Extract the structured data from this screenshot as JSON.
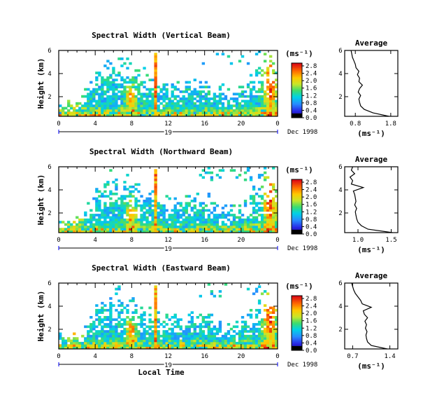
{
  "chart_data": [
    {
      "type": "heatmap",
      "title": "Spectral Width (Vertical Beam)",
      "ylabel": "Height (km)",
      "xticks": [
        "0",
        "4",
        "8",
        "12",
        "16",
        "20",
        "0"
      ],
      "xlim": [
        0,
        24
      ],
      "yticks": [
        "2",
        "4",
        "6"
      ],
      "ylim": [
        0.3,
        6
      ],
      "date_day": "19",
      "date_label": "Dec 1998",
      "colorbar": {
        "unit": "(ms⁻¹)",
        "ticks": [
          "0.0",
          "0.4",
          "0.8",
          "1.2",
          "1.6",
          "2.0",
          "2.4",
          "2.8"
        ]
      },
      "profile": {
        "title": "Average",
        "xlabel": "(ms⁻¹)",
        "xticks": [
          "0.8",
          "1.8"
        ],
        "yticks": [
          "2",
          "4",
          "6"
        ],
        "xlim": [
          0.5,
          2.0
        ],
        "ylim": [
          0.3,
          6
        ],
        "heights": [
          0.3,
          0.6,
          0.9,
          1.2,
          1.5,
          1.8,
          2.1,
          2.4,
          2.7,
          3.0,
          3.3,
          3.6,
          3.9,
          4.2,
          4.5,
          4.8,
          5.1,
          5.4,
          5.7,
          6.0
        ],
        "values": [
          1.75,
          1.3,
          1.05,
          0.95,
          0.92,
          0.9,
          0.95,
          0.88,
          0.92,
          1.0,
          0.9,
          0.92,
          0.86,
          0.9,
          0.82,
          0.8,
          0.76,
          0.72,
          0.7,
          0.68
        ]
      }
    },
    {
      "type": "heatmap",
      "title": "Spectral Width (Northward Beam)",
      "ylabel": "Height (km)",
      "xticks": [
        "0",
        "4",
        "8",
        "12",
        "16",
        "20",
        "0"
      ],
      "xlim": [
        0,
        24
      ],
      "yticks": [
        "2",
        "4",
        "6"
      ],
      "ylim": [
        0.3,
        6
      ],
      "date_day": "19",
      "date_label": "Dec 1998",
      "colorbar": {
        "unit": "(ms⁻¹)",
        "ticks": [
          "0.0",
          "0.4",
          "0.8",
          "1.2",
          "1.6",
          "2.0",
          "2.4",
          "2.8"
        ]
      },
      "profile": {
        "title": "Average",
        "xlabel": "(ms⁻¹)",
        "xticks": [
          "1.0",
          "1.5"
        ],
        "yticks": [
          "2",
          "4",
          "6"
        ],
        "xlim": [
          0.8,
          1.6
        ],
        "ylim": [
          0.3,
          6
        ],
        "heights": [
          0.3,
          0.6,
          0.9,
          1.2,
          1.5,
          1.8,
          2.1,
          2.4,
          2.7,
          3.0,
          3.3,
          3.6,
          3.9,
          4.2,
          4.5,
          4.8,
          5.1,
          5.4,
          5.7,
          6.0
        ],
        "values": [
          1.52,
          1.15,
          1.05,
          1.0,
          0.98,
          0.97,
          0.96,
          0.98,
          0.95,
          0.97,
          0.96,
          0.95,
          0.93,
          1.08,
          0.9,
          0.92,
          0.88,
          0.95,
          0.9,
          0.92
        ]
      }
    },
    {
      "type": "heatmap",
      "title": "Spectral Width (Eastward Beam)",
      "xlabel": "Local Time",
      "ylabel": "Height (km)",
      "xticks": [
        "0",
        "4",
        "8",
        "12",
        "16",
        "20",
        "0"
      ],
      "xlim": [
        0,
        24
      ],
      "yticks": [
        "2",
        "4",
        "6"
      ],
      "ylim": [
        0.3,
        6
      ],
      "date_day": "19",
      "date_label": "Dec 1998",
      "colorbar": {
        "unit": "(ms⁻¹)",
        "ticks": [
          "0.0",
          "0.4",
          "0.8",
          "1.2",
          "1.6",
          "2.0",
          "2.4",
          "2.8"
        ]
      },
      "profile": {
        "title": "Average",
        "xlabel": "(ms⁻¹)",
        "xticks": [
          "0.7",
          "1.4"
        ],
        "yticks": [
          "2",
          "4",
          "6"
        ],
        "xlim": [
          0.55,
          1.55
        ],
        "ylim": [
          0.3,
          6
        ],
        "heights": [
          0.3,
          0.6,
          0.9,
          1.2,
          1.5,
          1.8,
          2.1,
          2.4,
          2.7,
          3.0,
          3.3,
          3.6,
          3.9,
          4.2,
          4.5,
          4.8,
          5.1,
          5.4,
          5.7,
          6.0
        ],
        "values": [
          1.35,
          1.05,
          0.98,
          0.96,
          0.95,
          0.97,
          0.94,
          0.96,
          0.93,
          0.98,
          0.92,
          0.9,
          1.05,
          0.88,
          0.85,
          0.8,
          0.75,
          0.72,
          0.7,
          0.68
        ]
      }
    }
  ]
}
